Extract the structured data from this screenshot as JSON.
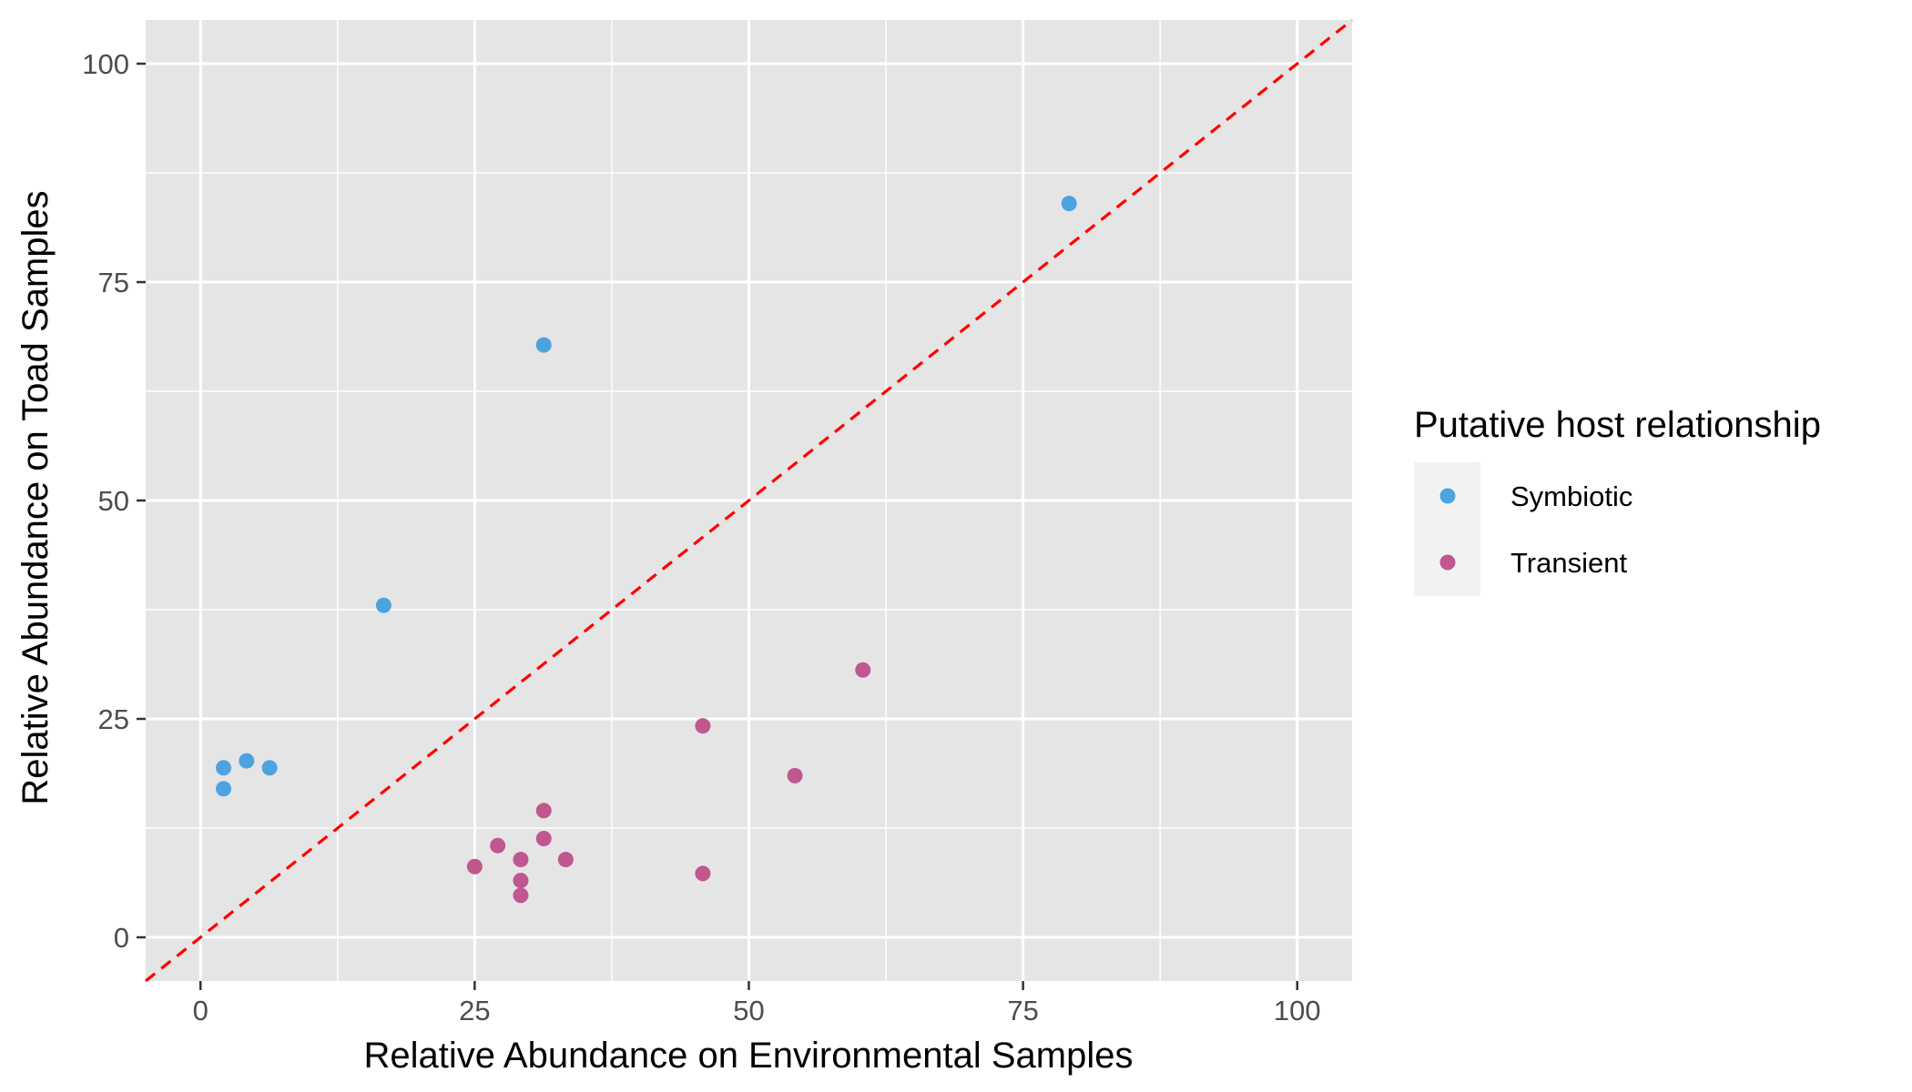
{
  "chart_data": {
    "type": "scatter",
    "title": "",
    "xlabel": "Relative Abundance on Environmental Samples",
    "ylabel": "Relative Abundance on Toad Samples",
    "xlim": [
      -5,
      105
    ],
    "ylim": [
      -5,
      105
    ],
    "x_ticks": [
      0,
      25,
      50,
      75,
      100
    ],
    "y_ticks": [
      0,
      25,
      50,
      75,
      100
    ],
    "grid": true,
    "reference_line": {
      "slope": 1,
      "intercept": 0,
      "style": "dashed",
      "color": "#ff0000"
    },
    "legend": {
      "title": "Putative host relationship",
      "position": "right"
    },
    "series": [
      {
        "name": "Symbiotic",
        "color": "#4ca3df",
        "points": [
          {
            "x": 79.2,
            "y": 84.0
          },
          {
            "x": 31.3,
            "y": 67.8
          },
          {
            "x": 16.7,
            "y": 38.0
          },
          {
            "x": 2.1,
            "y": 19.4
          },
          {
            "x": 4.2,
            "y": 20.2
          },
          {
            "x": 6.3,
            "y": 19.4
          },
          {
            "x": 2.1,
            "y": 17.0
          }
        ]
      },
      {
        "name": "Transient",
        "color": "#c0578f",
        "points": [
          {
            "x": 60.4,
            "y": 30.6
          },
          {
            "x": 45.8,
            "y": 24.2
          },
          {
            "x": 54.2,
            "y": 18.5
          },
          {
            "x": 31.3,
            "y": 14.5
          },
          {
            "x": 31.3,
            "y": 11.3
          },
          {
            "x": 27.1,
            "y": 10.5
          },
          {
            "x": 29.2,
            "y": 8.9
          },
          {
            "x": 33.3,
            "y": 8.9
          },
          {
            "x": 25.0,
            "y": 8.1
          },
          {
            "x": 45.8,
            "y": 7.3
          },
          {
            "x": 29.2,
            "y": 6.5
          },
          {
            "x": 29.2,
            "y": 4.8
          }
        ]
      }
    ]
  }
}
